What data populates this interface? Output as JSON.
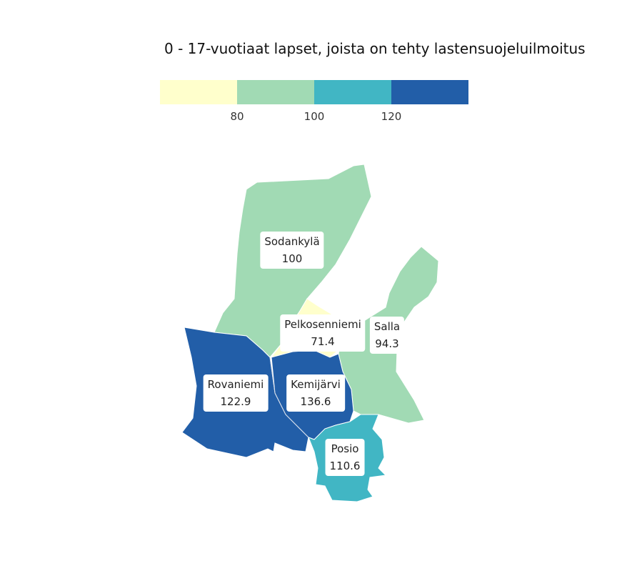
{
  "title": "0 - 17-vuotiaat lapset, joista on tehty lastensuojeluilmoitus",
  "legend": {
    "bins": [
      {
        "color": "#ffffcc"
      },
      {
        "color": "#a1dab4"
      },
      {
        "color": "#41b6c4"
      },
      {
        "color": "#225ea8"
      }
    ],
    "ticks": [
      "80",
      "100",
      "120"
    ]
  },
  "regions": [
    {
      "name": "Sodankylä",
      "value": "100",
      "color": "#a1dab4"
    },
    {
      "name": "Pelkosenniemi",
      "value": "71.4",
      "color": "#ffffcc"
    },
    {
      "name": "Salla",
      "value": "94.3",
      "color": "#a1dab4"
    },
    {
      "name": "Rovaniemi",
      "value": "122.9",
      "color": "#225ea8"
    },
    {
      "name": "Kemijärvi",
      "value": "136.6",
      "color": "#225ea8"
    },
    {
      "name": "Posio",
      "value": "110.6",
      "color": "#41b6c4"
    }
  ]
}
